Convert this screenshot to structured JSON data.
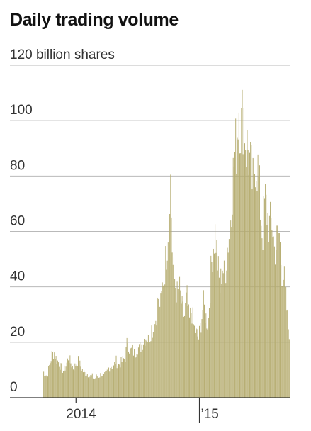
{
  "chart_data": {
    "type": "bar",
    "title": "Daily trading volume",
    "unit_label": "120 billion shares",
    "xlabel": "",
    "ylabel": "",
    "ylim": [
      0,
      120
    ],
    "y_ticks": [
      {
        "value": 0,
        "label": "0"
      },
      {
        "value": 20,
        "label": "20"
      },
      {
        "value": 40,
        "label": "40"
      },
      {
        "value": 60,
        "label": "60"
      },
      {
        "value": 80,
        "label": "80"
      },
      {
        "value": 100,
        "label": "100"
      },
      {
        "value": 120,
        "label": "120 billion shares"
      }
    ],
    "x_ticks": [
      {
        "date": "2014-01-01",
        "label": "2014"
      },
      {
        "date": "2015-01-01",
        "label": "’15"
      }
    ],
    "x_range": [
      "2013-09-24",
      "2015-09-25"
    ],
    "grid": true,
    "legend": "none",
    "bar_color": "#b5ac6f",
    "series": [
      {
        "dates": [
          "2013-09-24",
          "2013-10-01",
          "2013-10-08",
          "2013-10-15",
          "2013-10-22",
          "2013-10-29",
          "2013-11-05",
          "2013-11-12",
          "2013-11-19",
          "2013-11-26",
          "2013-12-03",
          "2013-12-10",
          "2013-12-17",
          "2013-12-24",
          "2013-12-31",
          "2014-01-07",
          "2014-01-14",
          "2014-01-21",
          "2014-01-28",
          "2014-02-04",
          "2014-02-11",
          "2014-02-18",
          "2014-02-25",
          "2014-03-04",
          "2014-03-11",
          "2014-03-18",
          "2014-03-25",
          "2014-04-01",
          "2014-04-08",
          "2014-04-15",
          "2014-04-22",
          "2014-04-29",
          "2014-05-06",
          "2014-05-13",
          "2014-05-20",
          "2014-05-27",
          "2014-06-03",
          "2014-06-10",
          "2014-06-17",
          "2014-06-24",
          "2014-07-01",
          "2014-07-08",
          "2014-07-15",
          "2014-07-22",
          "2014-07-29",
          "2014-08-05",
          "2014-08-12",
          "2014-08-19",
          "2014-08-26",
          "2014-09-02",
          "2014-09-09",
          "2014-09-16",
          "2014-09-23",
          "2014-09-30",
          "2014-10-07",
          "2014-10-14",
          "2014-10-21",
          "2014-10-28",
          "2014-11-04",
          "2014-11-11",
          "2014-11-18",
          "2014-11-25",
          "2014-12-02",
          "2014-12-09",
          "2014-12-16",
          "2014-12-23",
          "2014-12-30",
          "2015-01-06",
          "2015-01-13",
          "2015-01-20",
          "2015-01-27",
          "2015-02-03",
          "2015-02-10",
          "2015-02-17",
          "2015-02-24",
          "2015-03-03",
          "2015-03-10",
          "2015-03-17",
          "2015-03-24",
          "2015-03-31",
          "2015-04-07",
          "2015-04-14",
          "2015-04-21",
          "2015-04-28",
          "2015-05-05",
          "2015-05-12",
          "2015-05-19",
          "2015-05-26",
          "2015-06-02",
          "2015-06-09",
          "2015-06-16",
          "2015-06-23",
          "2015-06-30",
          "2015-07-07",
          "2015-07-14",
          "2015-07-21",
          "2015-07-28",
          "2015-08-04",
          "2015-08-11",
          "2015-08-18",
          "2015-08-25",
          "2015-09-01",
          "2015-09-08",
          "2015-09-15",
          "2015-09-22"
        ],
        "values": [
          10,
          9,
          8,
          12,
          16,
          17,
          14,
          13,
          11,
          10,
          12,
          15,
          13,
          11,
          12,
          14,
          12,
          10,
          9,
          9,
          8,
          8,
          7,
          8,
          8,
          9,
          8,
          9,
          11,
          12,
          11,
          14,
          12,
          13,
          14,
          15,
          22,
          17,
          18,
          16,
          19,
          18,
          20,
          22,
          23,
          21,
          26,
          25,
          30,
          38,
          34,
          45,
          50,
          62,
          85,
          50,
          43,
          38,
          40,
          33,
          30,
          38,
          28,
          33,
          26,
          24,
          22,
          28,
          35,
          30,
          27,
          44,
          56,
          62,
          50,
          40,
          50,
          44,
          55,
          62,
          76,
          88,
          95,
          110,
          100,
          108,
          94,
          92,
          84,
          78,
          90,
          85,
          72,
          60,
          74,
          68,
          63,
          66,
          55,
          58,
          62,
          48,
          45,
          35,
          25
        ]
      }
    ]
  }
}
